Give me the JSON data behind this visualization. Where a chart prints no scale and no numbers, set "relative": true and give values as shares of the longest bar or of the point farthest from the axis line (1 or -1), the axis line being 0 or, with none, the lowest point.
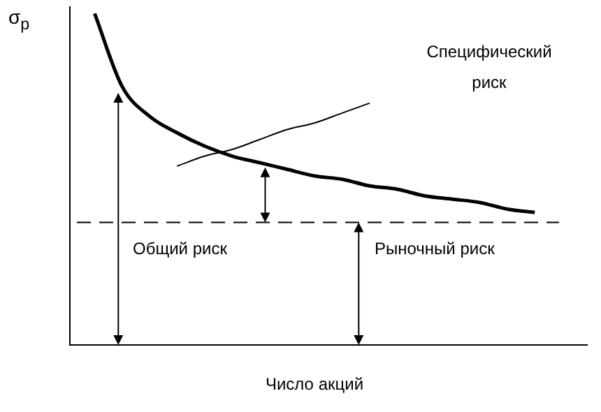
{
  "chart_data": {
    "type": "line",
    "relative": true,
    "ylabel": "σ$_{p}$",
    "xlabel": "Число акций",
    "categories": [
      null,
      null,
      null,
      null,
      null,
      null,
      null,
      null,
      null,
      null,
      null,
      null,
      null,
      null,
      null,
      null,
      null
    ],
    "series": [
      {
        "color": "#000000",
        "values": [
          1.0,
          0.78,
          0.69,
          0.64,
          0.6,
          0.57,
          0.55,
          0.53,
          0.51,
          0.5,
          0.48,
          0.47,
          0.45,
          0.44,
          0.43,
          0.41,
          0.4
        ]
      },
      {
        "color": "#000000",
        "values": [
          null,
          null,
          null,
          0.54,
          0.57,
          0.59,
          0.62,
          0.65,
          0.67,
          0.7,
          0.73,
          null,
          null,
          null,
          null,
          null,
          null
        ]
      }
    ],
    "ref_lines": [
      {
        "axis": "y",
        "value": 0.37,
        "line_style": "dashed",
        "color": "#000000"
      }
    ],
    "annotations": [
      "Специфический риск",
      "Общий риск",
      "Рыночный риск"
    ],
    "legend": false,
    "grid": false,
    "marker": "none",
    "line_style": "solid"
  }
}
